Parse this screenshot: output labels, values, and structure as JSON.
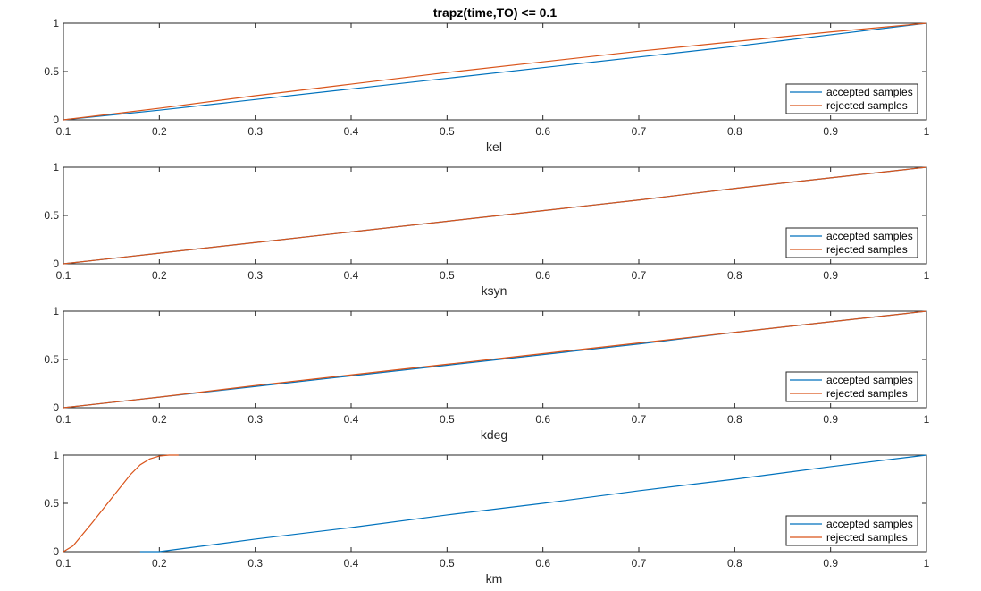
{
  "figure": {
    "title": "trapz(time,TO) <= 0.1",
    "colors": {
      "accepted": "#0072BD",
      "rejected": "#D95319",
      "axes": "#262626",
      "background": "#ffffff"
    }
  },
  "chart_data": [
    {
      "type": "line",
      "title": "trapz(time,TO) <= 0.1",
      "xlabel": "kel",
      "ylabel": "",
      "xlim": [
        0.1,
        1
      ],
      "ylim": [
        0,
        1
      ],
      "xticks": [
        "0.1",
        "0.2",
        "0.3",
        "0.4",
        "0.5",
        "0.6",
        "0.7",
        "0.8",
        "0.9",
        "1"
      ],
      "yticks": [
        "0",
        "0.5",
        "1"
      ],
      "grid": false,
      "legend": {
        "position": "lower-right",
        "entries": [
          "accepted samples",
          "rejected samples"
        ]
      },
      "series": [
        {
          "name": "accepted samples",
          "color": "#0072BD",
          "x": [
            0.1,
            0.2,
            0.3,
            0.4,
            0.5,
            0.6,
            0.7,
            0.8,
            0.9,
            1.0
          ],
          "y": [
            0,
            0.1,
            0.21,
            0.32,
            0.43,
            0.54,
            0.65,
            0.76,
            0.88,
            1.0
          ]
        },
        {
          "name": "rejected samples",
          "color": "#D95319",
          "x": [
            0.1,
            0.2,
            0.3,
            0.4,
            0.5,
            0.6,
            0.7,
            0.8,
            0.9,
            1.0
          ],
          "y": [
            0,
            0.12,
            0.25,
            0.37,
            0.49,
            0.6,
            0.71,
            0.81,
            0.91,
            1.0
          ]
        }
      ]
    },
    {
      "type": "line",
      "title": "",
      "xlabel": "ksyn",
      "ylabel": "",
      "xlim": [
        0.1,
        1
      ],
      "ylim": [
        0,
        1
      ],
      "xticks": [
        "0.1",
        "0.2",
        "0.3",
        "0.4",
        "0.5",
        "0.6",
        "0.7",
        "0.8",
        "0.9",
        "1"
      ],
      "yticks": [
        "0",
        "0.5",
        "1"
      ],
      "grid": false,
      "legend": {
        "position": "lower-right",
        "entries": [
          "accepted samples",
          "rejected samples"
        ]
      },
      "series": [
        {
          "name": "accepted samples",
          "color": "#0072BD",
          "x": [
            0.1,
            0.2,
            0.3,
            0.4,
            0.5,
            0.6,
            0.7,
            0.8,
            0.9,
            1.0
          ],
          "y": [
            0,
            0.11,
            0.22,
            0.33,
            0.44,
            0.55,
            0.66,
            0.78,
            0.89,
            1.0
          ]
        },
        {
          "name": "rejected samples",
          "color": "#D95319",
          "x": [
            0.1,
            0.2,
            0.3,
            0.4,
            0.5,
            0.6,
            0.7,
            0.8,
            0.9,
            1.0
          ],
          "y": [
            0,
            0.11,
            0.22,
            0.33,
            0.44,
            0.55,
            0.66,
            0.78,
            0.89,
            1.0
          ]
        }
      ]
    },
    {
      "type": "line",
      "title": "",
      "xlabel": "kdeg",
      "ylabel": "",
      "xlim": [
        0.1,
        1
      ],
      "ylim": [
        0,
        1
      ],
      "xticks": [
        "0.1",
        "0.2",
        "0.3",
        "0.4",
        "0.5",
        "0.6",
        "0.7",
        "0.8",
        "0.9",
        "1"
      ],
      "yticks": [
        "0",
        "0.5",
        "1"
      ],
      "grid": false,
      "legend": {
        "position": "lower-right",
        "entries": [
          "accepted samples",
          "rejected samples"
        ]
      },
      "series": [
        {
          "name": "accepted samples",
          "color": "#0072BD",
          "x": [
            0.1,
            0.2,
            0.3,
            0.4,
            0.5,
            0.6,
            0.7,
            0.8,
            0.9,
            1.0
          ],
          "y": [
            0,
            0.11,
            0.22,
            0.33,
            0.44,
            0.55,
            0.66,
            0.78,
            0.89,
            1.0
          ]
        },
        {
          "name": "rejected samples",
          "color": "#D95319",
          "x": [
            0.1,
            0.2,
            0.3,
            0.4,
            0.5,
            0.6,
            0.7,
            0.8,
            0.9,
            1.0
          ],
          "y": [
            0,
            0.11,
            0.23,
            0.34,
            0.45,
            0.56,
            0.67,
            0.78,
            0.89,
            1.0
          ]
        }
      ]
    },
    {
      "type": "line",
      "title": "",
      "xlabel": "km",
      "ylabel": "",
      "xlim": [
        0.1,
        1
      ],
      "ylim": [
        0,
        1
      ],
      "xticks": [
        "0.1",
        "0.2",
        "0.3",
        "0.4",
        "0.5",
        "0.6",
        "0.7",
        "0.8",
        "0.9",
        "1"
      ],
      "yticks": [
        "0",
        "0.5",
        "1"
      ],
      "grid": false,
      "legend": {
        "position": "lower-right",
        "entries": [
          "accepted samples",
          "rejected samples"
        ]
      },
      "series": [
        {
          "name": "accepted samples",
          "color": "#0072BD",
          "x": [
            0.18,
            0.2,
            0.3,
            0.4,
            0.5,
            0.6,
            0.7,
            0.8,
            0.9,
            1.0
          ],
          "y": [
            0,
            0.0,
            0.13,
            0.25,
            0.38,
            0.5,
            0.63,
            0.75,
            0.88,
            1.0
          ]
        },
        {
          "name": "rejected samples",
          "color": "#D95319",
          "x": [
            0.1,
            0.11,
            0.13,
            0.15,
            0.17,
            0.18,
            0.19,
            0.2,
            0.21,
            0.22
          ],
          "y": [
            0,
            0.06,
            0.3,
            0.55,
            0.8,
            0.9,
            0.96,
            0.99,
            1.0,
            1.0
          ]
        }
      ]
    }
  ]
}
